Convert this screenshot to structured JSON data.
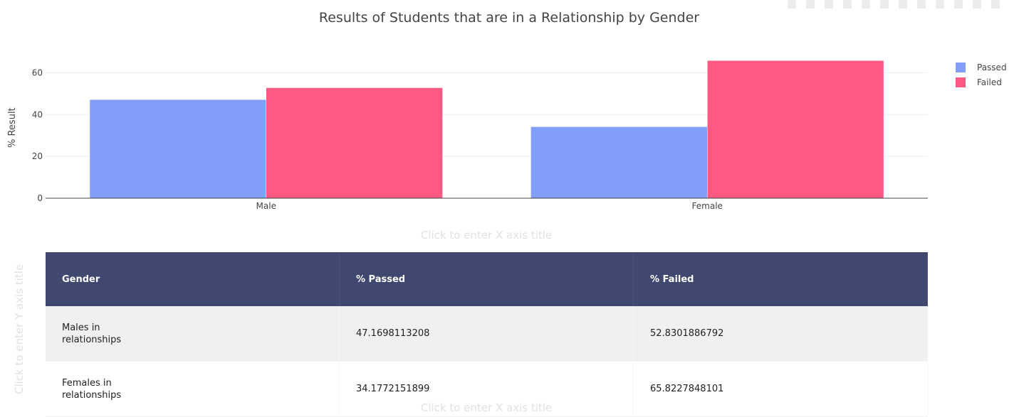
{
  "chart_data": {
    "type": "bar",
    "title": "Results of Students that are in a Relationship by Gender",
    "categories": [
      "Male",
      "Female"
    ],
    "series": [
      {
        "name": "Passed",
        "values": [
          47.1698113208,
          34.1772151899
        ],
        "color": "#839ef8"
      },
      {
        "name": "Failed",
        "values": [
          52.8301886792,
          65.8227848101
        ],
        "color": "#fc5983"
      }
    ],
    "ylabel": "% Result",
    "xlabel": "",
    "ylim": [
      0,
      69.3
    ],
    "yticks": [
      0,
      20,
      40,
      60
    ],
    "grid": true,
    "legend_position": "top-right"
  },
  "placeholders": {
    "x_axis_title": "Click to enter X axis title",
    "y_axis_title": "Click to enter Y axis title"
  },
  "table": {
    "header_color": "#404870",
    "headers": [
      "Gender",
      "% Passed",
      "% Failed"
    ],
    "rows": [
      [
        "Males in relationships",
        "47.1698113208",
        "52.8301886792"
      ],
      [
        "Females in relationships",
        "34.1772151899",
        "65.8227848101"
      ]
    ]
  }
}
